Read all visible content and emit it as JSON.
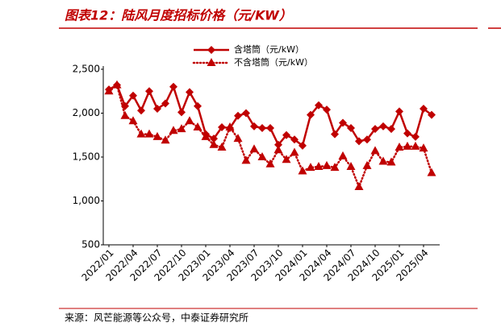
{
  "chart_data": {
    "type": "line",
    "title": "图表12：陆风月度招标价格（元/KW）",
    "source": "来源：风芒能源等公众号，中泰证券研究所",
    "categories": [
      "2022/01",
      null,
      null,
      "2022/04",
      null,
      null,
      "2022/07",
      null,
      null,
      "2022/10",
      null,
      null,
      "2023/01",
      null,
      null,
      "2023/04",
      null,
      null,
      "2023/07",
      null,
      null,
      "2023/10",
      null,
      null,
      "2024/01",
      null,
      null,
      "2024/04",
      null,
      null,
      "2024/07",
      null,
      null,
      "2024/10",
      null,
      null,
      "2025/01",
      null,
      null,
      "2025/04",
      null
    ],
    "series": [
      {
        "name": "含塔筒（元/kW）",
        "color": "#c00000",
        "marker": "diamond",
        "dash": "solid",
        "values": [
          2270,
          2320,
          2080,
          2200,
          2030,
          2250,
          2050,
          2110,
          2300,
          2010,
          2240,
          2080,
          1760,
          1710,
          1840,
          1830,
          1970,
          2000,
          1850,
          1830,
          1830,
          1640,
          1750,
          1700,
          1630,
          1980,
          2090,
          2040,
          1760,
          1890,
          1830,
          1680,
          1700,
          1820,
          1850,
          1820,
          2020,
          1770,
          1730,
          2050,
          1980
        ]
      },
      {
        "name": "不含塔筒（元/kW）",
        "color": "#c00000",
        "marker": "triangle",
        "dash": "dotted",
        "values": [
          2250,
          2320,
          1970,
          1910,
          1760,
          1760,
          1730,
          1690,
          1800,
          1820,
          1910,
          1840,
          1730,
          1640,
          1610,
          1840,
          1710,
          1460,
          1590,
          1500,
          1420,
          1580,
          1470,
          1550,
          1340,
          1380,
          1390,
          1400,
          1380,
          1510,
          1390,
          1160,
          1400,
          1570,
          1450,
          1440,
          1610,
          1620,
          1620,
          1600,
          1320
        ]
      }
    ],
    "ylim": [
      500,
      2500
    ],
    "yticks": [
      {
        "value": 500,
        "label": "500"
      },
      {
        "value": 1000,
        "label": "1,000"
      },
      {
        "value": 1500,
        "label": "1,500"
      },
      {
        "value": 2000,
        "label": "2,000"
      },
      {
        "value": 2500,
        "label": "2,500"
      }
    ],
    "grid": false,
    "legend": "top"
  }
}
